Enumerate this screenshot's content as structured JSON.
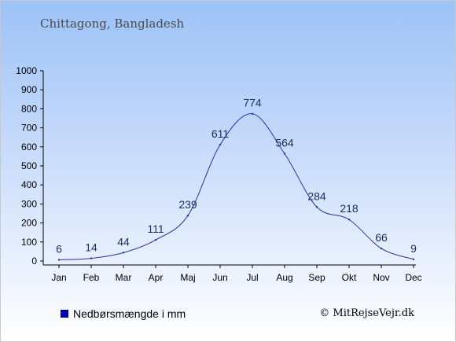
{
  "chart_data": {
    "type": "line",
    "title": "Chittagong, Bangladesh",
    "categories": [
      "Jan",
      "Feb",
      "Mar",
      "Apr",
      "Maj",
      "Jun",
      "Jul",
      "Aug",
      "Sep",
      "Okt",
      "Nov",
      "Dec"
    ],
    "series": [
      {
        "name": "Nedbørsmængde i mm",
        "values": [
          6,
          14,
          44,
          111,
          239,
          611,
          774,
          564,
          284,
          218,
          66,
          9
        ],
        "color": "#2233aa"
      }
    ],
    "y_ticks": [
      0,
      100,
      200,
      300,
      400,
      500,
      600,
      700,
      800,
      900,
      1000
    ],
    "ylim": [
      0,
      1000
    ],
    "grid": false,
    "legend_position": "bottom-left",
    "legend_color": "#0000aa"
  },
  "footer": {
    "credit": "© MitRejseVejr.dk"
  }
}
